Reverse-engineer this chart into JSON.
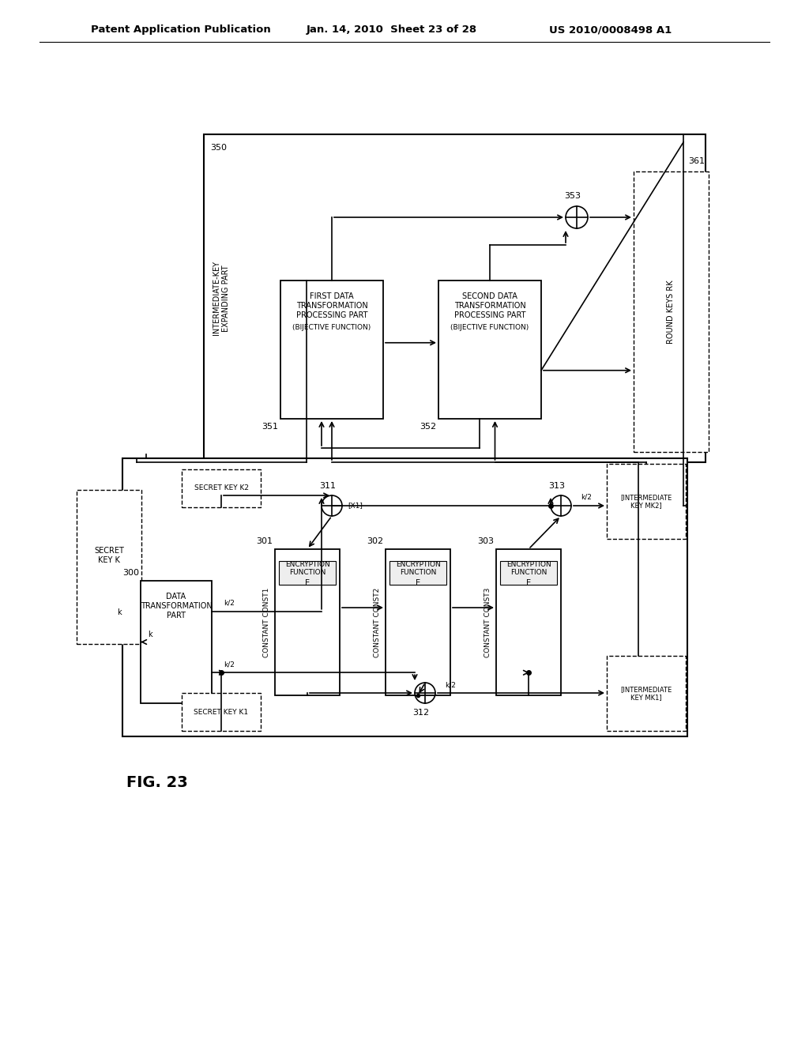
{
  "header_left": "Patent Application Publication",
  "header_mid": "Jan. 14, 2010  Sheet 23 of 28",
  "header_right": "US 2010/0008498 A1",
  "fig_label": "FIG. 23",
  "bg_color": "#ffffff",
  "line_color": "#000000"
}
